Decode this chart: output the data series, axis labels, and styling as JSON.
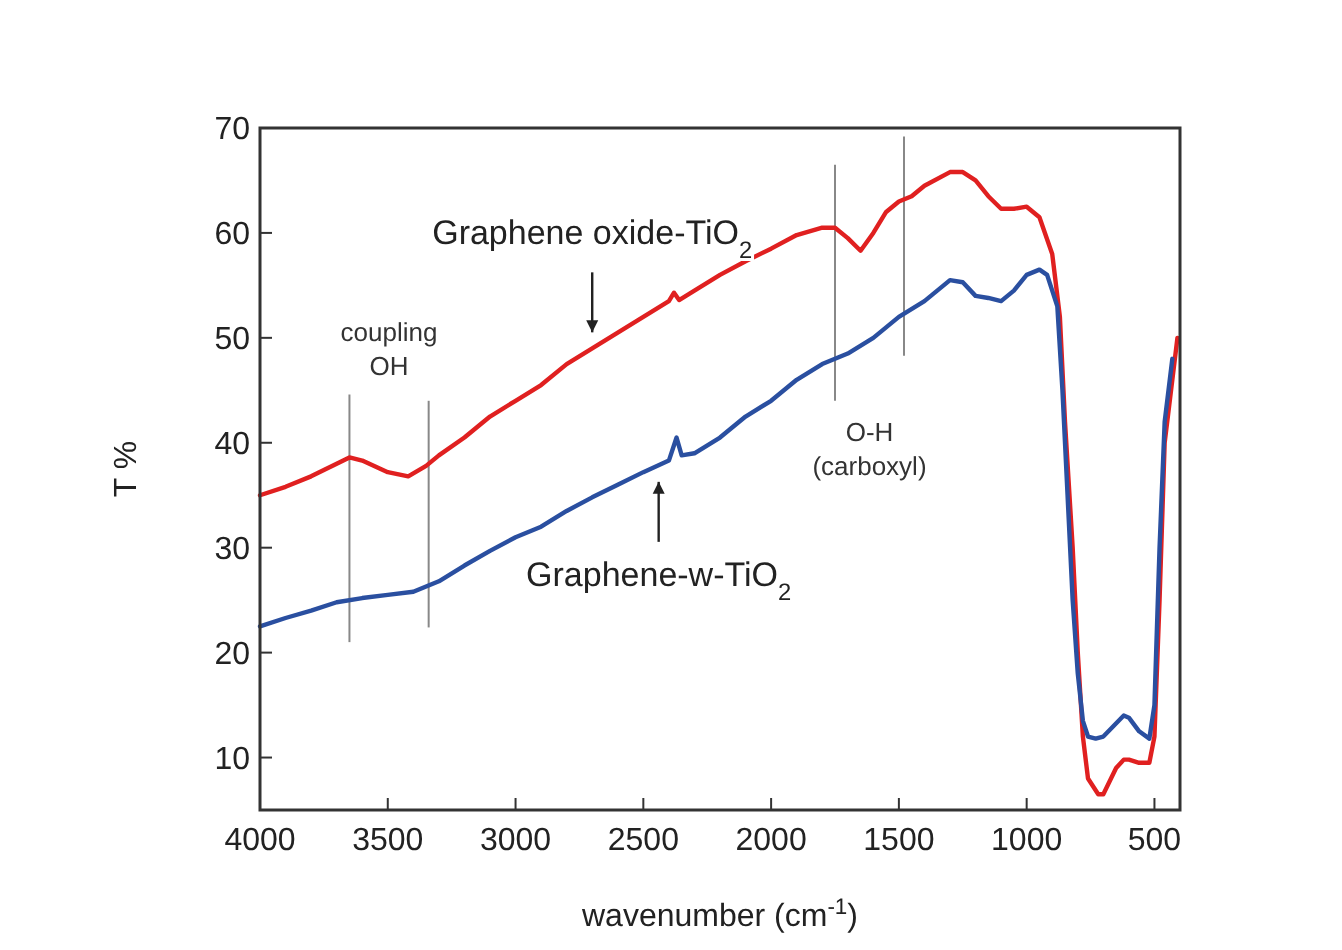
{
  "chart_data": {
    "type": "line",
    "xlabel": "wavenumber (cm$^{-1}$)",
    "ylabel": "T %",
    "xlim": [
      4000,
      400
    ],
    "ylim": [
      5,
      70
    ],
    "xticks": [
      4000,
      3500,
      3000,
      2500,
      2000,
      1500,
      1000,
      500
    ],
    "yticks": [
      10,
      20,
      30,
      40,
      50,
      60,
      70
    ],
    "grid": false,
    "marker": "none",
    "line_style": "solid",
    "series": [
      {
        "color": "#e02020",
        "x": [
          4000,
          3900,
          3800,
          3700,
          3650,
          3600,
          3500,
          3420,
          3350,
          3300,
          3200,
          3100,
          3000,
          2900,
          2800,
          2700,
          2600,
          2500,
          2400,
          2380,
          2360,
          2300,
          2200,
          2100,
          2000,
          1900,
          1800,
          1750,
          1700,
          1650,
          1600,
          1550,
          1500,
          1450,
          1400,
          1300,
          1250,
          1200,
          1150,
          1100,
          1050,
          1000,
          950,
          900,
          870,
          850,
          820,
          800,
          780,
          760,
          720,
          700,
          680,
          650,
          620,
          600,
          560,
          520,
          500,
          480,
          460,
          410
        ],
        "values": [
          35,
          35.8,
          36.8,
          38,
          38.6,
          38.3,
          37.2,
          36.8,
          37.8,
          38.8,
          40.5,
          42.5,
          44,
          45.5,
          47.5,
          49,
          50.5,
          52,
          53.5,
          54.3,
          53.6,
          54.5,
          56,
          57.3,
          58.5,
          59.8,
          60.5,
          60.5,
          59.5,
          58.3,
          60,
          62,
          63,
          63.5,
          64.5,
          65.8,
          65.8,
          65,
          63.5,
          62.3,
          62.3,
          62.5,
          61.5,
          58,
          52,
          42,
          30,
          20,
          12,
          8,
          6.5,
          6.5,
          7.5,
          9,
          9.8,
          9.8,
          9.5,
          9.5,
          12,
          25,
          40,
          50
        ]
      },
      {
        "color": "#2a4fa0",
        "x": [
          4000,
          3900,
          3800,
          3700,
          3600,
          3500,
          3400,
          3300,
          3200,
          3100,
          3000,
          2900,
          2800,
          2700,
          2600,
          2500,
          2400,
          2370,
          2350,
          2300,
          2200,
          2100,
          2000,
          1900,
          1800,
          1700,
          1600,
          1550,
          1500,
          1400,
          1300,
          1250,
          1200,
          1150,
          1100,
          1050,
          1000,
          950,
          920,
          880,
          860,
          840,
          820,
          800,
          780,
          760,
          730,
          700,
          660,
          620,
          600,
          560,
          520,
          500,
          480,
          460,
          430
        ],
        "values": [
          22.5,
          23.3,
          24,
          24.8,
          25.2,
          25.5,
          25.8,
          26.8,
          28.3,
          29.7,
          31,
          32,
          33.5,
          34.8,
          36,
          37.2,
          38.3,
          40.5,
          38.8,
          39,
          40.5,
          42.5,
          44,
          46,
          47.5,
          48.5,
          50,
          51,
          52,
          53.5,
          55.5,
          55.3,
          54,
          53.8,
          53.5,
          54.5,
          56,
          56.5,
          56,
          53,
          45,
          35,
          25,
          18,
          13.5,
          12,
          11.8,
          12,
          13,
          14,
          13.8,
          12.5,
          11.8,
          15,
          30,
          42,
          48
        ]
      }
    ],
    "ref_lines": [
      {
        "axis": "x",
        "value": 3650,
        "label": "coupling\nOH",
        "color": "#888888"
      },
      {
        "axis": "x",
        "value": 3340,
        "label": null,
        "color": "#888888"
      },
      {
        "axis": "x",
        "value": 1750,
        "label": "O-H\n(carboxyl)",
        "color": "#888888"
      },
      {
        "axis": "x",
        "value": 1480,
        "label": null,
        "color": "#888888"
      }
    ],
    "annotations": [
      {
        "text": "Graphene oxide-TiO$_{2}$",
        "x": 2700,
        "y": 49
      },
      {
        "text": "Graphene-w-TiO$_{2}$",
        "x": 2440,
        "y": 37.8
      }
    ]
  }
}
